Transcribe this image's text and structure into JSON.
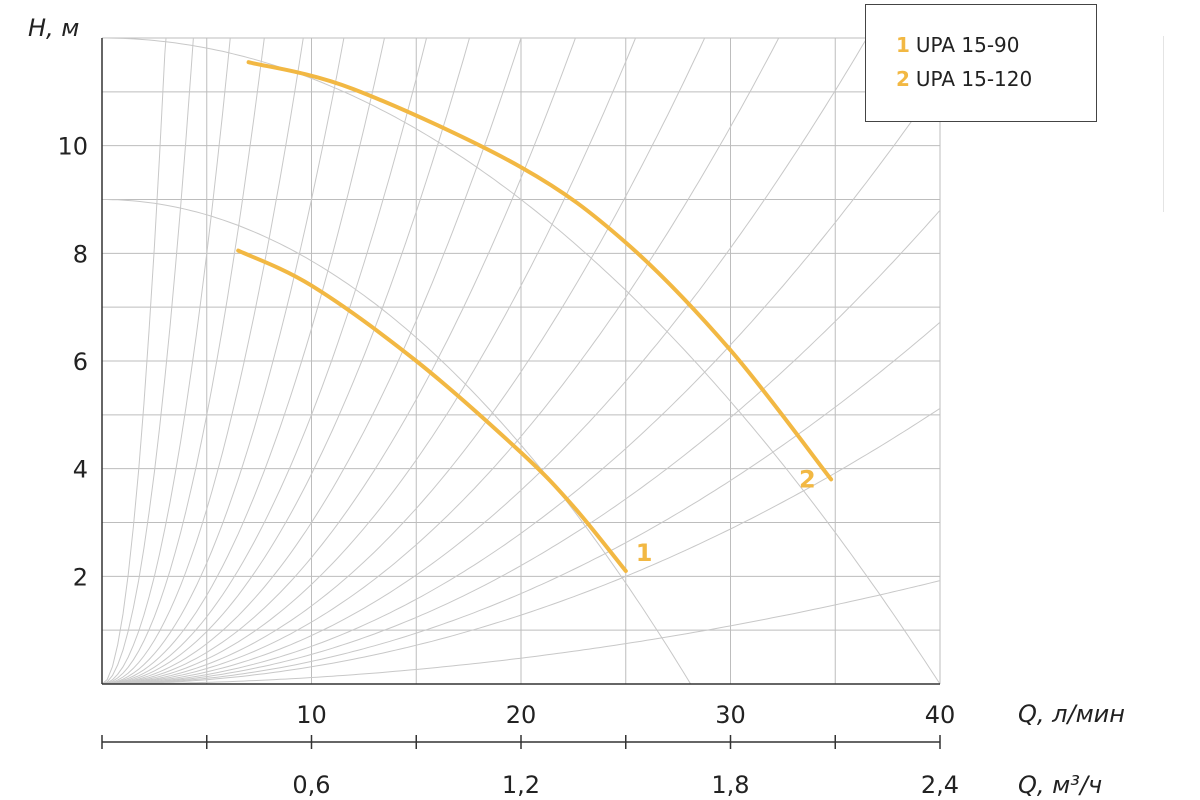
{
  "colors": {
    "series": "#f2b843",
    "grid": "#bdbdbd",
    "axis": "#333333"
  },
  "chart_data": {
    "type": "line",
    "ylabel": "H, м",
    "xlabel": "Q, л/мин",
    "x2label": "Q, м³/ч",
    "xlim": [
      0,
      40
    ],
    "ylim": [
      0,
      12
    ],
    "x_ticks": [
      "10",
      "20",
      "30",
      "40"
    ],
    "x2_ticks": [
      "0,6",
      "1,2",
      "1,8",
      "2,4"
    ],
    "y_ticks": [
      "2",
      "4",
      "6",
      "8",
      "10"
    ],
    "grid": true,
    "legend_position": "top-right",
    "series": [
      {
        "name": "UPA 15-90",
        "number": "1",
        "x": [
          6.5,
          10,
          15,
          20,
          22.5,
          25
        ],
        "y": [
          8.05,
          7.4,
          6.0,
          4.3,
          3.3,
          2.1
        ]
      },
      {
        "name": "UPA 15-120",
        "number": "2",
        "x": [
          7,
          12,
          20,
          25,
          30,
          34.8
        ],
        "y": [
          11.55,
          11.05,
          9.6,
          8.2,
          6.2,
          3.8
        ]
      }
    ],
    "limit_curves": [
      {
        "a": 12,
        "b": 0.0075
      },
      {
        "a": 9,
        "b": 0.0114
      }
    ],
    "system_curve_coefficients": [
      1.3,
      0.63,
      0.32,
      0.2,
      0.13,
      0.09,
      0.066,
      0.05,
      0.039,
      0.03,
      0.0235,
      0.0185,
      0.0145,
      0.0115,
      0.009,
      0.007,
      0.0055,
      0.0042,
      0.0032,
      0.0012
    ]
  }
}
